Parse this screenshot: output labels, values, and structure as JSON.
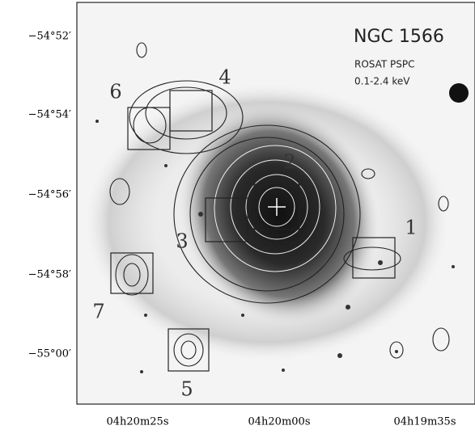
{
  "figure": {
    "title": "NGC 1566",
    "instrument": "ROSAT PSPC",
    "band": "0.1-2.4 keV",
    "y_tick_labels": [
      "−54°52′",
      "−54°54′",
      "−54°56′",
      "−54°58′",
      "−55°00′"
    ],
    "x_tick_labels": [
      "04h20m25s",
      "04h20m00s",
      "04h19m35s"
    ],
    "region_labels": [
      "1",
      "2",
      "3",
      "4",
      "5",
      "6",
      "7"
    ]
  }
}
